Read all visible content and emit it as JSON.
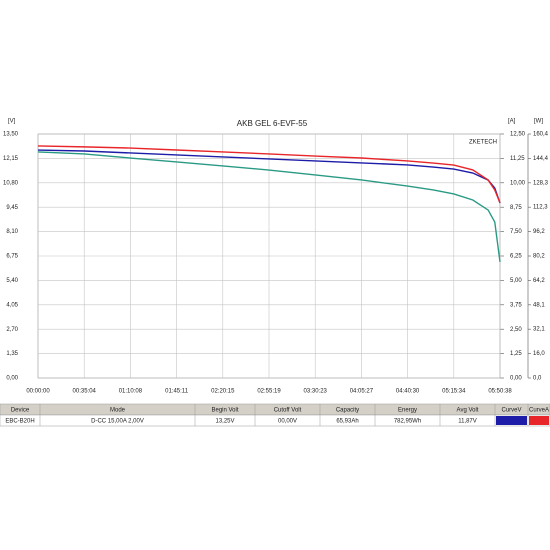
{
  "chart_data": {
    "type": "line",
    "title": "AKB GEL 6-EVF-55",
    "y_unit": "[V]",
    "y2_unit": "[A]",
    "y3_unit": "[W]",
    "watermark": "ZKETECH",
    "x": [
      0,
      2104,
      4208,
      6311,
      8415,
      10519,
      12623,
      14727,
      16830,
      18000,
      18934,
      19800,
      20500,
      20800,
      21038
    ],
    "xlim": [
      0,
      21038
    ],
    "xticks": [
      {
        "value": 0,
        "label": "00:00:00"
      },
      {
        "value": 2104,
        "label": "00:35:04"
      },
      {
        "value": 4208,
        "label": "01:10:08"
      },
      {
        "value": 6311,
        "label": "01:45:11"
      },
      {
        "value": 8415,
        "label": "02:20:15"
      },
      {
        "value": 10519,
        "label": "02:55:19"
      },
      {
        "value": 12623,
        "label": "03:30:23"
      },
      {
        "value": 14727,
        "label": "04:05:27"
      },
      {
        "value": 16830,
        "label": "04:40:30"
      },
      {
        "value": 18934,
        "label": "05:15:34"
      },
      {
        "value": 21038,
        "label": "05:50:38"
      }
    ],
    "ylim": [
      0,
      13.5
    ],
    "yticks": [
      {
        "value": 0,
        "label": "0,00"
      },
      {
        "value": 1.35,
        "label": "1,35"
      },
      {
        "value": 2.7,
        "label": "2,70"
      },
      {
        "value": 4.05,
        "label": "4,05"
      },
      {
        "value": 5.4,
        "label": "5,40"
      },
      {
        "value": 6.75,
        "label": "6,75"
      },
      {
        "value": 8.1,
        "label": "8,10"
      },
      {
        "value": 9.45,
        "label": "9,45"
      },
      {
        "value": 10.8,
        "label": "10,80"
      },
      {
        "value": 12.15,
        "label": "12,15"
      },
      {
        "value": 13.5,
        "label": "13,50"
      }
    ],
    "y2lim": [
      0,
      12.5
    ],
    "y2ticks": [
      {
        "value": 0,
        "label": "0,00"
      },
      {
        "value": 1.25,
        "label": "1,25"
      },
      {
        "value": 2.5,
        "label": "2,50"
      },
      {
        "value": 3.75,
        "label": "3,75"
      },
      {
        "value": 5,
        "label": "5,00"
      },
      {
        "value": 6.25,
        "label": "6,25"
      },
      {
        "value": 7.5,
        "label": "7,50"
      },
      {
        "value": 8.75,
        "label": "8,75"
      },
      {
        "value": 10,
        "label": "10,00"
      },
      {
        "value": 11.25,
        "label": "11,25"
      },
      {
        "value": 12.5,
        "label": "12,50"
      }
    ],
    "y3lim": [
      0,
      160.4
    ],
    "y3ticks": [
      {
        "value": 0,
        "label": "0,0"
      },
      {
        "value": 16,
        "label": "16,0"
      },
      {
        "value": 32.1,
        "label": "32,1"
      },
      {
        "value": 48.1,
        "label": "48,1"
      },
      {
        "value": 64.2,
        "label": "64,2"
      },
      {
        "value": 80.2,
        "label": "80,2"
      },
      {
        "value": 96.2,
        "label": "96,2"
      },
      {
        "value": 112.3,
        "label": "112,3"
      },
      {
        "value": 128.3,
        "label": "128,3"
      },
      {
        "value": 144.4,
        "label": "144,4"
      },
      {
        "value": 160.4,
        "label": "160,4"
      }
    ],
    "grid": true,
    "series": [
      {
        "name": "CurveV",
        "color": "#1c1ca8",
        "values": [
          12.61,
          12.56,
          12.45,
          12.34,
          12.23,
          12.12,
          12.01,
          11.9,
          11.79,
          11.67,
          11.56,
          11.34,
          10.95,
          10.51,
          9.68
        ]
      },
      {
        "name": "CurveA",
        "color": "#e8262a",
        "axis": "y2",
        "values": [
          11.89,
          11.84,
          11.78,
          11.68,
          11.58,
          11.48,
          11.37,
          11.27,
          11.12,
          11.01,
          10.91,
          10.66,
          10.14,
          9.63,
          8.97
        ]
      },
      {
        "color": "#2a9a85",
        "axis": "y3",
        "values": [
          148.6,
          147.3,
          144.6,
          142.0,
          139.4,
          136.7,
          133.5,
          130.2,
          126.2,
          123.6,
          121.0,
          117.0,
          110.4,
          102.5,
          76.3
        ]
      }
    ]
  },
  "table": {
    "columns": [
      "Device",
      "Mode",
      "Begin Volt",
      "Cutoff Volt",
      "Capacity",
      "Energy",
      "Avg Volt",
      "CurveV",
      "CurveA"
    ],
    "rows": [
      [
        "EBC-B20H",
        "D-CC 15,00A 2,00V",
        "13,25V",
        "00,00V",
        "65,93Ah",
        "782,95Wh",
        "11,87V"
      ]
    ]
  }
}
